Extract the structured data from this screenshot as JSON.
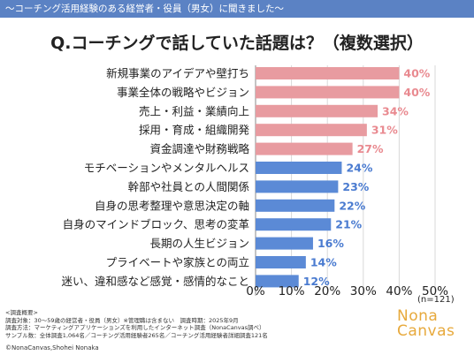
{
  "header": {
    "banner": "〜コーチング活用経験のある経営者・役員（男女）に聞きました〜",
    "question": "Q.コーチングで話していた話題は？（複数選択）"
  },
  "chart_data": {
    "type": "bar",
    "orientation": "horizontal",
    "categories": [
      "新規事業のアイデアや壁打ち",
      "事業全体の戦略やビジョン",
      "売上・利益・業績向上",
      "採用・育成・組織開発",
      "資金調達や財務戦略",
      "モチベーションやメンタルヘルス",
      "幹部や社員との人間関係",
      "自身の思考整理や意思決定の軸",
      "自身のマインドブロック、思考の変革",
      "長期の人生ビジョン",
      "プライベートや家族との両立",
      "迷い、違和感など感覚・感情的なこと"
    ],
    "values": [
      40,
      40,
      34,
      31,
      27,
      24,
      23,
      22,
      21,
      16,
      14,
      12
    ],
    "value_labels": [
      "40%",
      "40%",
      "34%",
      "31%",
      "27%",
      "24%",
      "23%",
      "22%",
      "21%",
      "16%",
      "14%",
      "12%"
    ],
    "xlim": [
      0,
      50
    ],
    "xticks": [
      "0%",
      "10%",
      "20%",
      "30%",
      "40%",
      "50%"
    ],
    "sample_note": "(n=121)",
    "colors": {
      "top5": "#e89ba0",
      "top5_label": "#e98a90",
      "rest": "#5b8ad6",
      "rest_label": "#4a7bd0"
    }
  },
  "footer": {
    "notes": [
      "<調査概要>",
      "調査対象：30～59歳の経営者・役員（男女）※管理職は含まない　調査時期：2025年9月",
      "調査方法：マーケティングアプリケーションズを利用したインターネット調査（NonaCanvas調べ）",
      "サンプル数：全体調査1,064名／コーチング活用経験者265名／コーチング活用経験者詳細調査121名"
    ],
    "logo_line1": "Nona",
    "logo_line2": "Canvas",
    "credit": "©NonaCanvas,Shohei Nonaka"
  }
}
